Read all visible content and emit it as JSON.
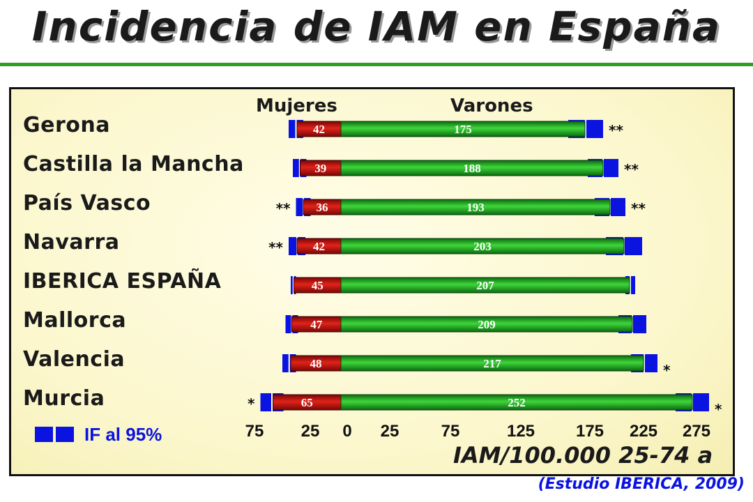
{
  "title": "Incidencia de IAM en España",
  "source": "(Estudio IBERICA, 2009)",
  "colors": {
    "women_bar": "#c8140e",
    "men_bar": "#13a21b",
    "ci": "#0a13e0",
    "rule": "#2e9e1e"
  },
  "chart_data": {
    "type": "bar",
    "orientation": "horizontal",
    "layout": "diverging",
    "xlabel": "IAM/100.000 25-74 a",
    "column_headers": [
      "Mujeres",
      "Varones"
    ],
    "x_tick_labels": [
      "75",
      "25",
      "0",
      "25",
      "75",
      "125",
      "175",
      "225",
      "275"
    ],
    "legend": {
      "label": "IF al 95%"
    },
    "categories": [
      "Gerona",
      "Castilla la Mancha",
      "País Vasco",
      "Navarra",
      "IBERICA ESPAÑA",
      "Mallorca",
      "Valencia",
      "Murcia"
    ],
    "series": [
      {
        "name": "Mujeres",
        "values": [
          42,
          39,
          36,
          42,
          45,
          47,
          48,
          65
        ]
      },
      {
        "name": "Varones",
        "values": [
          175,
          188,
          193,
          203,
          207,
          209,
          217,
          252
        ]
      }
    ],
    "ci_95": {
      "Mujeres": [
        [
          36,
          50
        ],
        [
          33,
          46
        ],
        [
          29,
          43
        ],
        [
          34,
          50
        ],
        [
          43,
          48
        ],
        [
          41,
          53
        ],
        [
          43,
          56
        ],
        [
          55,
          77
        ]
      ],
      "Varones": [
        [
          163,
          188
        ],
        [
          177,
          199
        ],
        [
          182,
          204
        ],
        [
          190,
          216
        ],
        [
          204,
          211
        ],
        [
          199,
          219
        ],
        [
          208,
          227
        ],
        [
          240,
          264
        ]
      ]
    },
    "significance": {
      "Mujeres": [
        "",
        "",
        "**",
        "**",
        "",
        "",
        "",
        "*"
      ],
      "Varones": [
        "**",
        "**",
        "**",
        "",
        "",
        "",
        "*",
        "*"
      ]
    }
  }
}
